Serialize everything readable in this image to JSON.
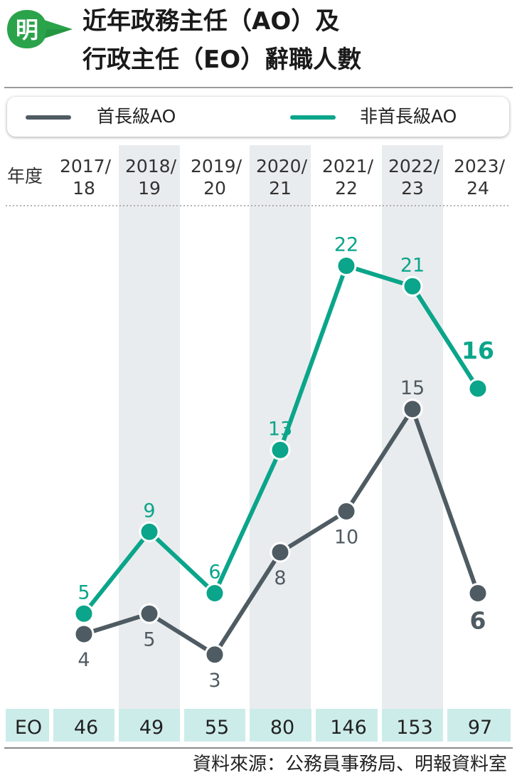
{
  "header": {
    "logo_text": "明",
    "title_line1": "近年政務主任（AO）及",
    "title_line2": "行政主任（EO）辭職人數"
  },
  "legend": [
    {
      "label": "首長級AO",
      "color": "#4f5b62"
    },
    {
      "label": "非首長級AO",
      "color": "#0aa58a"
    }
  ],
  "colors": {
    "directorate": "#4f5b62",
    "non_directorate": "#0aa58a",
    "band": "#e9ecee",
    "eo_bg": "#ccecea"
  },
  "chart_data": {
    "type": "line",
    "x_header": "年度",
    "categories": [
      [
        "2017/",
        "18"
      ],
      [
        "2018/",
        "19"
      ],
      [
        "2019/",
        "20"
      ],
      [
        "2020/",
        "21"
      ],
      [
        "2021/",
        "22"
      ],
      [
        "2022/",
        "23"
      ],
      [
        "2023/",
        "24"
      ]
    ],
    "series": [
      {
        "name": "首長級AO",
        "values": [
          4,
          5,
          3,
          8,
          10,
          15,
          6
        ]
      },
      {
        "name": "非首長級AO",
        "values": [
          5,
          9,
          6,
          13,
          22,
          21,
          16
        ]
      }
    ],
    "ylim": [
      0,
      24
    ],
    "emphasize_last_point": true,
    "eo_row": {
      "label": "EO",
      "values": [
        46,
        49,
        55,
        80,
        146,
        153,
        97
      ]
    }
  },
  "footer": {
    "source": "資料來源：公務員事務局、明報資料室"
  }
}
